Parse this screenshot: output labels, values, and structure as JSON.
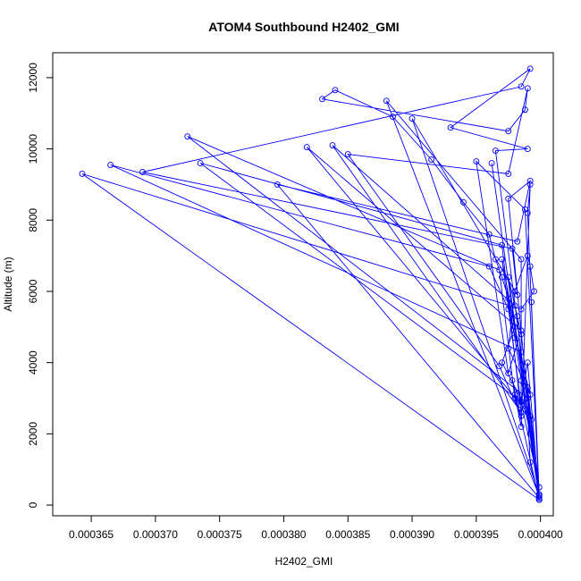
{
  "chart_data": {
    "type": "line",
    "title": "ATOM4 Southbound H2402_GMI",
    "xlabel": "H2402_GMI",
    "ylabel": "Altitude (m)",
    "xlim": [
      0.000362,
      0.000401
    ],
    "ylim": [
      -300,
      12700
    ],
    "x_ticks": [
      0.000365,
      0.00037,
      0.000375,
      0.00038,
      0.000385,
      0.00039,
      0.000395,
      0.0004
    ],
    "x_tick_labels": [
      "0.000365",
      "0.000370",
      "0.000375",
      "0.000380",
      "0.000385",
      "0.000390",
      "0.000395",
      "0.000400"
    ],
    "y_ticks": [
      0,
      2000,
      4000,
      6000,
      8000,
      10000,
      12000
    ],
    "y_tick_labels": [
      "0",
      "2000",
      "4000",
      "6000",
      "8000",
      "10000",
      "12000"
    ],
    "color": "#0000ff",
    "marker": "open-circle",
    "grid": false,
    "legend": "none",
    "series": [
      {
        "x": [
          0.0003999,
          0.0003992,
          0.000399,
          0.0003985,
          0.000398,
          0.0003975,
          0.000397,
          0.0003965,
          0.000396,
          0.000394,
          0.0003915,
          0.0003885,
          0.000384,
          0.000383,
          0.0003975,
          0.0003988,
          0.000399,
          0.0003975,
          0.000385,
          0.0003968,
          0.0003985,
          0.000398,
          0.0003968,
          0.0003725,
          0.000399,
          0.0003975,
          0.0003992,
          0.0003982,
          0.0003795,
          0.0003999,
          0.0003985,
          0.000398,
          0.0003838,
          0.0003985,
          0.000397,
          0.0003735,
          0.0003985,
          0.0003985,
          0.000388,
          0.0003999,
          0.0003965,
          0.000399,
          0.000393,
          0.0003992,
          0.0003985,
          0.000369,
          0.0003978,
          0.0003982,
          0.00039,
          0.0003999,
          0.0003988,
          0.000395,
          0.0003975,
          0.0003985,
          0.0003818,
          0.0003992,
          0.000397,
          0.000398,
          0.0003962,
          0.0003999,
          0.0003985,
          0.0003665,
          0.000396,
          0.0003975,
          0.0003992,
          0.0003975,
          0.000398,
          0.000399,
          0.0003992,
          0.0003995,
          0.0003985,
          0.0003643,
          0.0003999,
          0.0003978,
          0.0003985,
          0.000397,
          0.0003993,
          0.000398,
          0.0003985,
          0.0003992,
          0.000399,
          0.0003999,
          0.0003975,
          0.0003982,
          0.0003988,
          0.0003992,
          0.000399,
          0.0003999,
          0.0003985,
          0.000399,
          0.0003999,
          0.0003993,
          0.0003999
        ],
        "y": [
          150,
          1200,
          2600,
          3500,
          4700,
          5800,
          6400,
          6900,
          7600,
          8500,
          9700,
          10900,
          11650,
          11400,
          10500,
          11100,
          11700,
          9300,
          9850,
          3900,
          2500,
          3000,
          6600,
          10350,
          3000,
          8600,
          9100,
          7400,
          9000,
          200,
          4800,
          5600,
          10100,
          2600,
          7300,
          9600,
          2900,
          6900,
          11350,
          250,
          9950,
          10000,
          10600,
          12250,
          11750,
          9350,
          7200,
          5900,
          10850,
          300,
          8300,
          9650,
          3700,
          4900,
          10050,
          2500,
          4000,
          5000,
          9600,
          150,
          4300,
          9550,
          6700,
          5500,
          3100,
          4400,
          6000,
          7000,
          6700,
          6000,
          5500,
          9300,
          150,
          3500,
          2800,
          6900,
          2400,
          3100,
          2200,
          9000,
          8200,
          300,
          6400,
          5300,
          2700,
          2000,
          3300,
          500,
          2900,
          4000,
          250,
          5700,
          200
        ]
      }
    ]
  }
}
